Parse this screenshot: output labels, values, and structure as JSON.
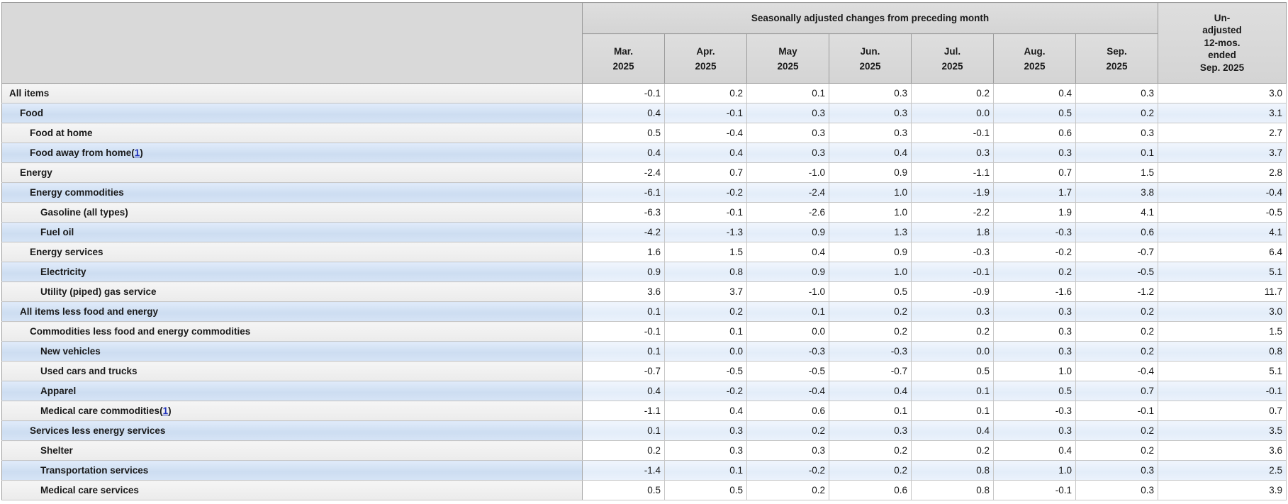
{
  "table": {
    "header": {
      "group_label": "Seasonally adjusted changes from preceding month",
      "unadjusted_label": "Un-\nadjusted\n12-mos.\nended\nSep. 2025",
      "months": [
        "Mar.\n2025",
        "Apr.\n2025",
        "May\n2025",
        "Jun.\n2025",
        "Jul.\n2025",
        "Aug.\n2025",
        "Sep.\n2025"
      ]
    },
    "colors": {
      "header_bg": "#d9d9d9",
      "row_gray": "#f0f0f0",
      "row_blue_label": "#d4e3f5",
      "row_blue_data": "#e9f0fb",
      "footnote_link": "#2233bb"
    },
    "rows": [
      {
        "label": "All items",
        "indent": 0,
        "footnote": "",
        "values": [
          "-0.1",
          "0.2",
          "0.1",
          "0.3",
          "0.2",
          "0.4",
          "0.3"
        ],
        "unadjusted": "3.0"
      },
      {
        "label": "Food",
        "indent": 1,
        "footnote": "",
        "values": [
          "0.4",
          "-0.1",
          "0.3",
          "0.3",
          "0.0",
          "0.5",
          "0.2"
        ],
        "unadjusted": "3.1"
      },
      {
        "label": "Food at home",
        "indent": 2,
        "footnote": "",
        "values": [
          "0.5",
          "-0.4",
          "0.3",
          "0.3",
          "-0.1",
          "0.6",
          "0.3"
        ],
        "unadjusted": "2.7"
      },
      {
        "label": "Food away from home",
        "indent": 2,
        "footnote": "1",
        "values": [
          "0.4",
          "0.4",
          "0.3",
          "0.4",
          "0.3",
          "0.3",
          "0.1"
        ],
        "unadjusted": "3.7"
      },
      {
        "label": "Energy",
        "indent": 1,
        "footnote": "",
        "values": [
          "-2.4",
          "0.7",
          "-1.0",
          "0.9",
          "-1.1",
          "0.7",
          "1.5"
        ],
        "unadjusted": "2.8"
      },
      {
        "label": "Energy commodities",
        "indent": 2,
        "footnote": "",
        "values": [
          "-6.1",
          "-0.2",
          "-2.4",
          "1.0",
          "-1.9",
          "1.7",
          "3.8"
        ],
        "unadjusted": "-0.4"
      },
      {
        "label": "Gasoline (all types)",
        "indent": 3,
        "footnote": "",
        "values": [
          "-6.3",
          "-0.1",
          "-2.6",
          "1.0",
          "-2.2",
          "1.9",
          "4.1"
        ],
        "unadjusted": "-0.5"
      },
      {
        "label": "Fuel oil",
        "indent": 3,
        "footnote": "",
        "values": [
          "-4.2",
          "-1.3",
          "0.9",
          "1.3",
          "1.8",
          "-0.3",
          "0.6"
        ],
        "unadjusted": "4.1"
      },
      {
        "label": "Energy services",
        "indent": 2,
        "footnote": "",
        "values": [
          "1.6",
          "1.5",
          "0.4",
          "0.9",
          "-0.3",
          "-0.2",
          "-0.7"
        ],
        "unadjusted": "6.4"
      },
      {
        "label": "Electricity",
        "indent": 3,
        "footnote": "",
        "values": [
          "0.9",
          "0.8",
          "0.9",
          "1.0",
          "-0.1",
          "0.2",
          "-0.5"
        ],
        "unadjusted": "5.1"
      },
      {
        "label": "Utility (piped) gas service",
        "indent": 3,
        "footnote": "",
        "values": [
          "3.6",
          "3.7",
          "-1.0",
          "0.5",
          "-0.9",
          "-1.6",
          "-1.2"
        ],
        "unadjusted": "11.7"
      },
      {
        "label": "All items less food and energy",
        "indent": 1,
        "footnote": "",
        "values": [
          "0.1",
          "0.2",
          "0.1",
          "0.2",
          "0.3",
          "0.3",
          "0.2"
        ],
        "unadjusted": "3.0"
      },
      {
        "label": "Commodities less food and energy commodities",
        "indent": 2,
        "footnote": "",
        "values": [
          "-0.1",
          "0.1",
          "0.0",
          "0.2",
          "0.2",
          "0.3",
          "0.2"
        ],
        "unadjusted": "1.5"
      },
      {
        "label": "New vehicles",
        "indent": 3,
        "footnote": "",
        "values": [
          "0.1",
          "0.0",
          "-0.3",
          "-0.3",
          "0.0",
          "0.3",
          "0.2"
        ],
        "unadjusted": "0.8"
      },
      {
        "label": "Used cars and trucks",
        "indent": 3,
        "footnote": "",
        "values": [
          "-0.7",
          "-0.5",
          "-0.5",
          "-0.7",
          "0.5",
          "1.0",
          "-0.4"
        ],
        "unadjusted": "5.1"
      },
      {
        "label": "Apparel",
        "indent": 3,
        "footnote": "",
        "values": [
          "0.4",
          "-0.2",
          "-0.4",
          "0.4",
          "0.1",
          "0.5",
          "0.7"
        ],
        "unadjusted": "-0.1"
      },
      {
        "label": "Medical care commodities",
        "indent": 3,
        "footnote": "1",
        "values": [
          "-1.1",
          "0.4",
          "0.6",
          "0.1",
          "0.1",
          "-0.3",
          "-0.1"
        ],
        "unadjusted": "0.7"
      },
      {
        "label": "Services less energy services",
        "indent": 2,
        "footnote": "",
        "values": [
          "0.1",
          "0.3",
          "0.2",
          "0.3",
          "0.4",
          "0.3",
          "0.2"
        ],
        "unadjusted": "3.5"
      },
      {
        "label": "Shelter",
        "indent": 3,
        "footnote": "",
        "values": [
          "0.2",
          "0.3",
          "0.3",
          "0.2",
          "0.2",
          "0.4",
          "0.2"
        ],
        "unadjusted": "3.6"
      },
      {
        "label": "Transportation services",
        "indent": 3,
        "footnote": "",
        "values": [
          "-1.4",
          "0.1",
          "-0.2",
          "0.2",
          "0.8",
          "1.0",
          "0.3"
        ],
        "unadjusted": "2.5"
      },
      {
        "label": "Medical care services",
        "indent": 3,
        "footnote": "",
        "values": [
          "0.5",
          "0.5",
          "0.2",
          "0.6",
          "0.8",
          "-0.1",
          "0.3"
        ],
        "unadjusted": "3.9"
      }
    ]
  }
}
